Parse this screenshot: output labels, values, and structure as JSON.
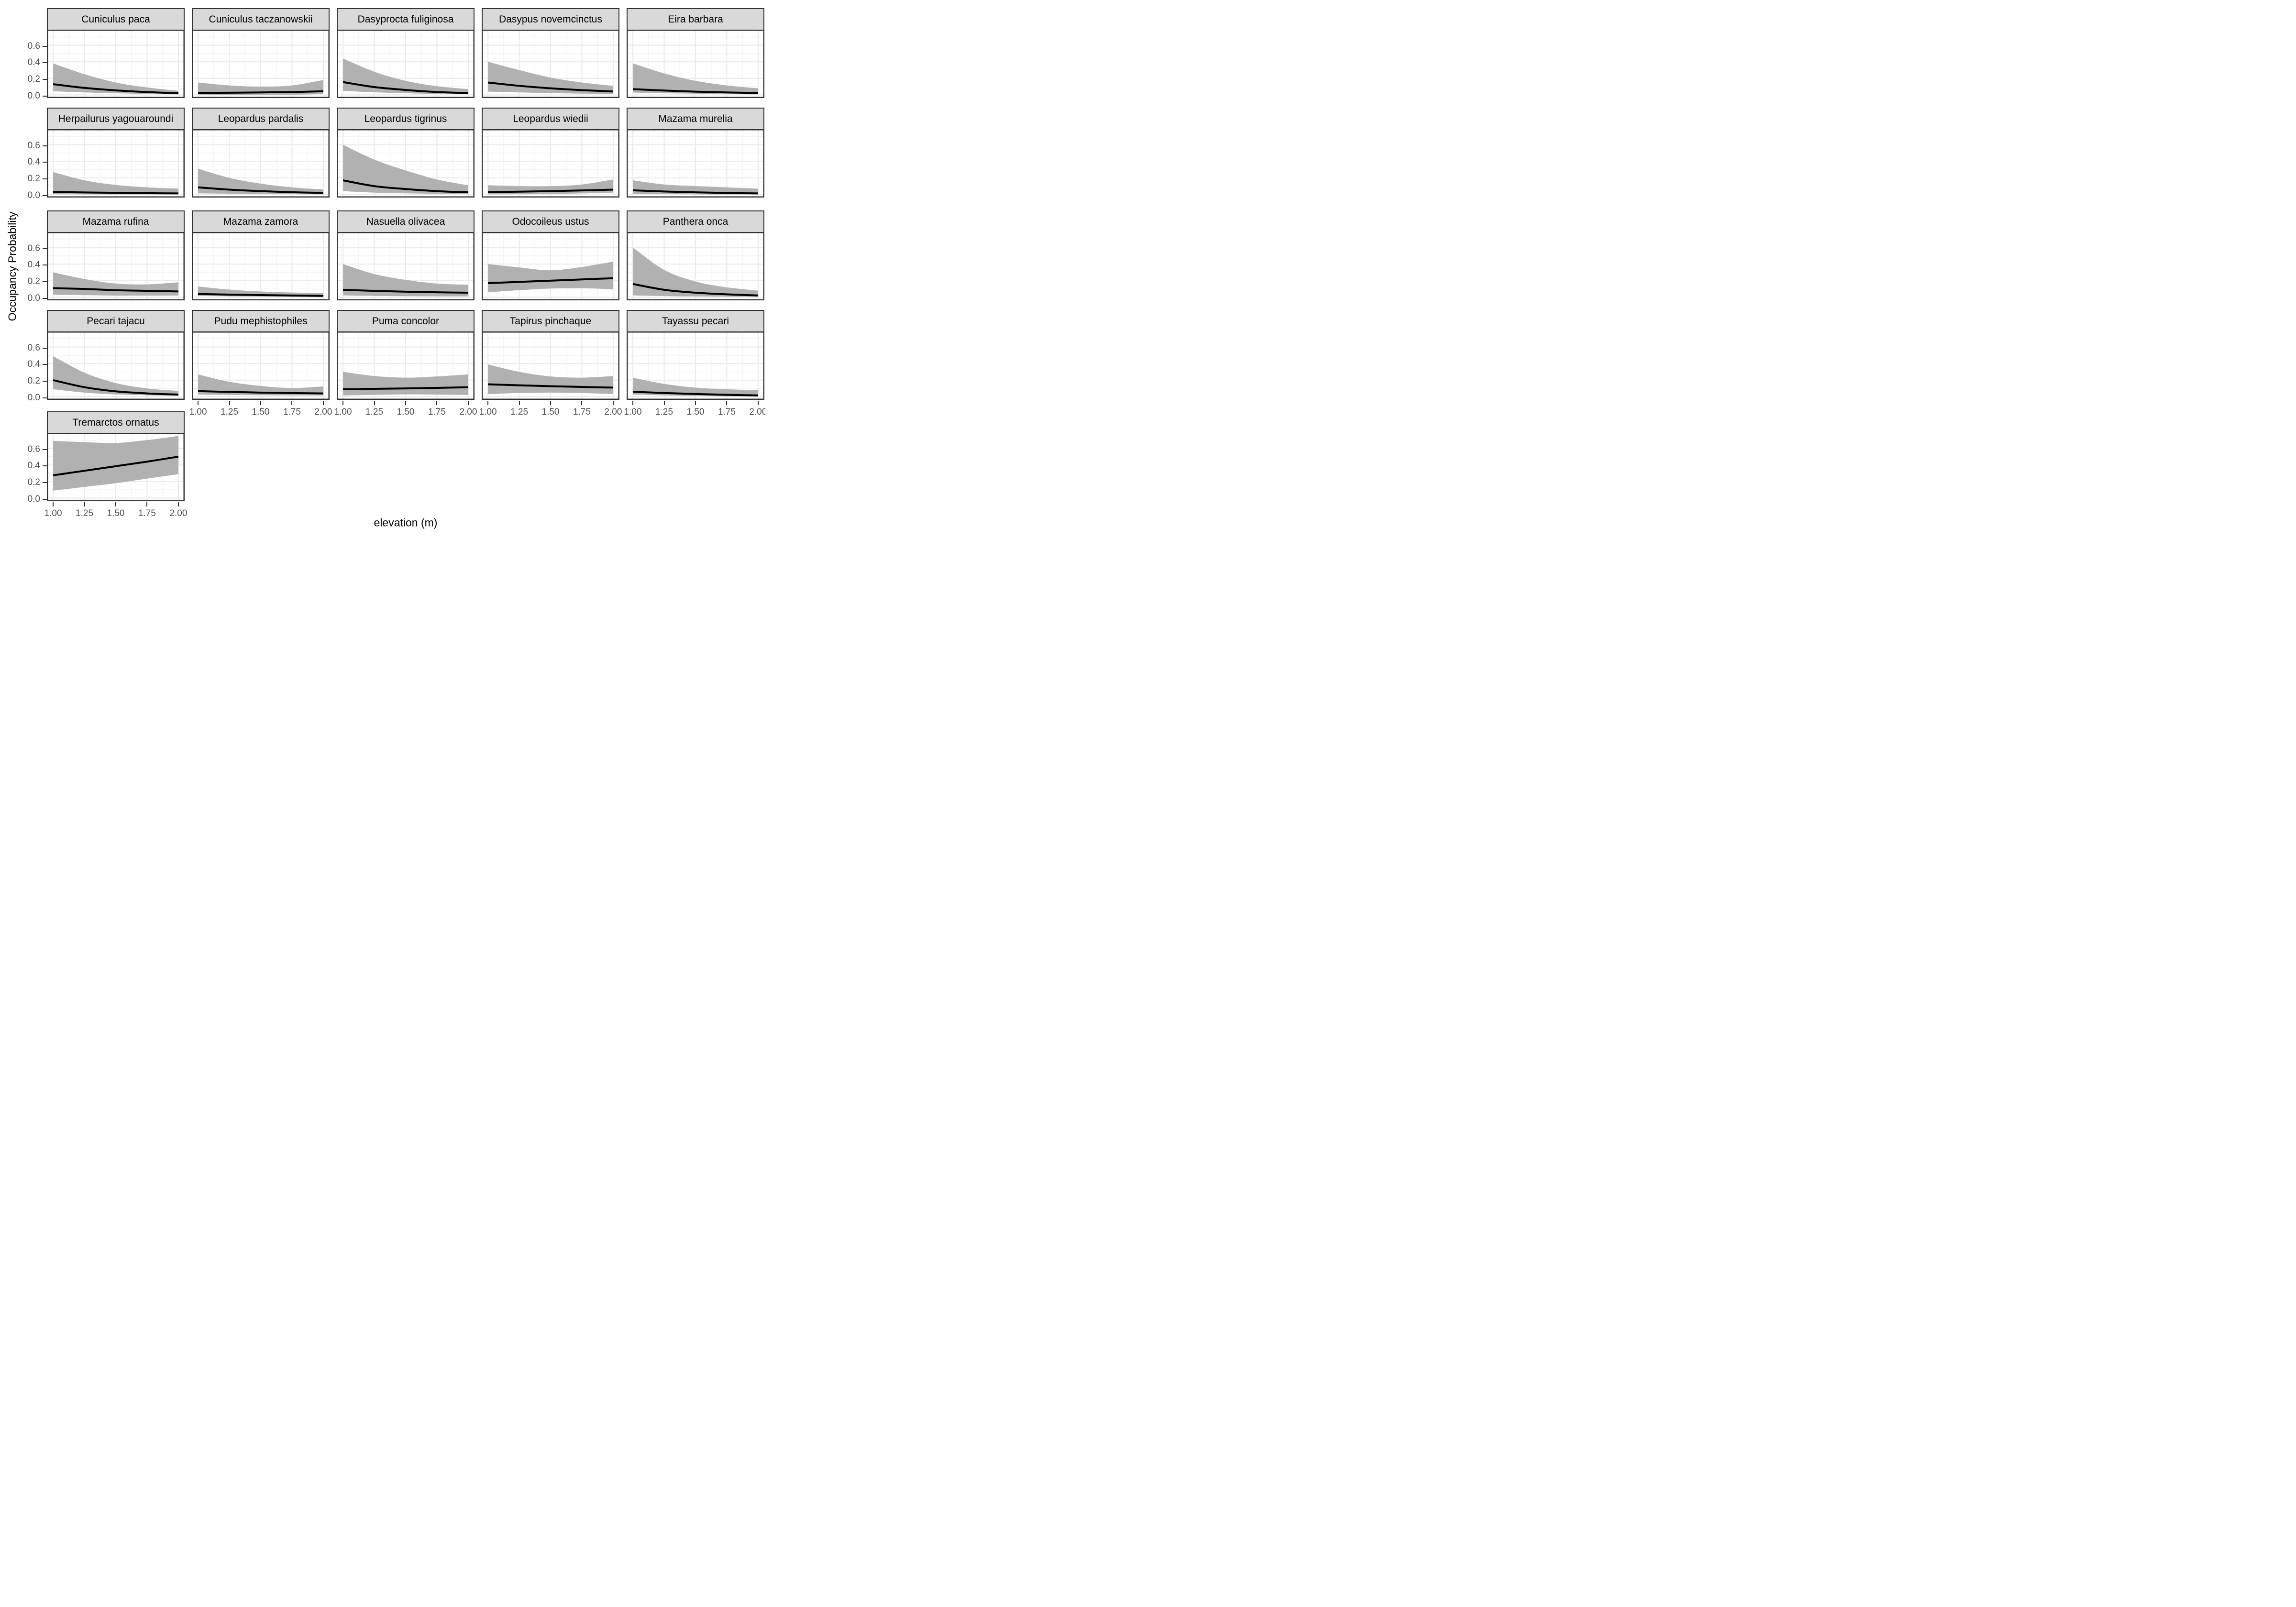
{
  "chart_data": {
    "type": "line",
    "title": "",
    "xlabel": "elevation (m)",
    "ylabel": "Occupancy Probability",
    "x": [
      1.0,
      1.25,
      1.5,
      1.75,
      2.0
    ],
    "xlim": [
      0.95,
      2.05
    ],
    "ylim": [
      -0.0375,
      0.7875
    ],
    "x_ticks": [
      "1.00",
      "1.25",
      "1.50",
      "1.75",
      "2.00"
    ],
    "x_tick_values": [
      1.0,
      1.25,
      1.5,
      1.75,
      2.0
    ],
    "y_ticks": [
      "0.0",
      "0.2",
      "0.4",
      "0.6"
    ],
    "y_tick_values": [
      0.0,
      0.2,
      0.4,
      0.6
    ],
    "x_minor": [
      1.125,
      1.375,
      1.625,
      1.875
    ],
    "y_minor": [
      0.1,
      0.3,
      0.5,
      0.7
    ],
    "grid": true,
    "legend": "none",
    "colors": {
      "ribbon": "#b1b1b1",
      "mean_line": "#000000",
      "panel_border": "#333333",
      "strip_fill": "#d9d9d9",
      "grid_major": "#ebebeb",
      "grid_minor": "#f3f3f3",
      "axis_text": "#4d4d4d"
    },
    "facets": [
      {
        "label": "Cuniculus paca",
        "mean": [
          0.13,
          0.085,
          0.055,
          0.035,
          0.02
        ],
        "lower": [
          0.045,
          0.03,
          0.02,
          0.012,
          0.006
        ],
        "upper": [
          0.38,
          0.25,
          0.15,
          0.09,
          0.05
        ]
      },
      {
        "label": "Cuniculus taczanowskii",
        "mean": [
          0.025,
          0.027,
          0.03,
          0.035,
          0.045
        ],
        "lower": [
          0.004,
          0.001,
          0.0,
          0.002,
          0.01
        ],
        "upper": [
          0.15,
          0.115,
          0.1,
          0.115,
          0.18
        ]
      },
      {
        "label": "Dasyprocta fuliginosa",
        "mean": [
          0.155,
          0.095,
          0.06,
          0.035,
          0.022
        ],
        "lower": [
          0.05,
          0.032,
          0.02,
          0.012,
          0.007
        ],
        "upper": [
          0.44,
          0.28,
          0.17,
          0.105,
          0.07
        ]
      },
      {
        "label": "Dasypus novemcinctus",
        "mean": [
          0.15,
          0.11,
          0.08,
          0.058,
          0.042
        ],
        "lower": [
          0.04,
          0.03,
          0.022,
          0.016,
          0.012
        ],
        "upper": [
          0.4,
          0.3,
          0.21,
          0.15,
          0.11
        ]
      },
      {
        "label": "Eira barbara",
        "mean": [
          0.07,
          0.053,
          0.04,
          0.03,
          0.023
        ],
        "lower": [
          0.028,
          0.02,
          0.015,
          0.01,
          0.007
        ],
        "upper": [
          0.38,
          0.26,
          0.17,
          0.115,
          0.08
        ]
      },
      {
        "label": "Herpailurus yagouaroundi",
        "mean": [
          0.03,
          0.024,
          0.019,
          0.015,
          0.012
        ],
        "lower": [
          0.002,
          0.001,
          0.0,
          0.0,
          0.0
        ],
        "upper": [
          0.27,
          0.17,
          0.115,
          0.085,
          0.07
        ]
      },
      {
        "label": "Leopardus pardalis",
        "mean": [
          0.085,
          0.058,
          0.04,
          0.027,
          0.018
        ],
        "lower": [
          0.012,
          0.008,
          0.005,
          0.002,
          0.0
        ],
        "upper": [
          0.31,
          0.2,
          0.13,
          0.085,
          0.06
        ]
      },
      {
        "label": "Leopardus tigrinus",
        "mean": [
          0.17,
          0.1,
          0.065,
          0.04,
          0.025
        ],
        "lower": [
          0.04,
          0.022,
          0.013,
          0.008,
          0.005
        ],
        "upper": [
          0.6,
          0.42,
          0.29,
          0.18,
          0.11
        ]
      },
      {
        "label": "Leopardus wiedii",
        "mean": [
          0.028,
          0.033,
          0.04,
          0.048,
          0.058
        ],
        "lower": [
          0.0,
          0.002,
          0.005,
          0.012,
          0.022
        ],
        "upper": [
          0.11,
          0.1,
          0.1,
          0.12,
          0.18
        ]
      },
      {
        "label": "Mazama murelia",
        "mean": [
          0.05,
          0.035,
          0.025,
          0.017,
          0.012
        ],
        "lower": [
          0.006,
          0.003,
          0.001,
          0.0,
          0.0
        ],
        "upper": [
          0.17,
          0.12,
          0.1,
          0.085,
          0.07
        ]
      },
      {
        "label": "Mazama rufina",
        "mean": [
          0.11,
          0.1,
          0.085,
          0.078,
          0.07
        ],
        "lower": [
          0.03,
          0.025,
          0.02,
          0.02,
          0.02
        ],
        "upper": [
          0.3,
          0.22,
          0.165,
          0.155,
          0.18
        ]
      },
      {
        "label": "Mazama zamora",
        "mean": [
          0.04,
          0.032,
          0.026,
          0.021,
          0.016
        ],
        "lower": [
          0.015,
          0.011,
          0.008,
          0.006,
          0.004
        ],
        "upper": [
          0.13,
          0.092,
          0.07,
          0.057,
          0.05
        ]
      },
      {
        "label": "Nasuella olivacea",
        "mean": [
          0.09,
          0.077,
          0.067,
          0.06,
          0.055
        ],
        "lower": [
          0.022,
          0.016,
          0.012,
          0.011,
          0.01
        ],
        "upper": [
          0.4,
          0.28,
          0.21,
          0.165,
          0.15
        ]
      },
      {
        "label": "Odocoileus ustus",
        "mean": [
          0.17,
          0.185,
          0.2,
          0.215,
          0.23
        ],
        "lower": [
          0.06,
          0.085,
          0.105,
          0.11,
          0.095
        ],
        "upper": [
          0.4,
          0.36,
          0.325,
          0.365,
          0.43
        ]
      },
      {
        "label": "Panthera onca",
        "mean": [
          0.16,
          0.09,
          0.055,
          0.035,
          0.022
        ],
        "lower": [
          0.022,
          0.014,
          0.01,
          0.007,
          0.005
        ],
        "upper": [
          0.6,
          0.33,
          0.19,
          0.12,
          0.08
        ]
      },
      {
        "label": "Pecari tajacu",
        "mean": [
          0.2,
          0.115,
          0.065,
          0.04,
          0.025
        ],
        "lower": [
          0.09,
          0.05,
          0.028,
          0.017,
          0.011
        ],
        "upper": [
          0.49,
          0.29,
          0.165,
          0.1,
          0.07
        ]
      },
      {
        "label": "Pudu mephistophiles",
        "mean": [
          0.068,
          0.058,
          0.05,
          0.044,
          0.04
        ],
        "lower": [
          0.026,
          0.021,
          0.018,
          0.016,
          0.015
        ],
        "upper": [
          0.27,
          0.18,
          0.13,
          0.105,
          0.125
        ]
      },
      {
        "label": "Puma concolor",
        "mean": [
          0.09,
          0.095,
          0.1,
          0.107,
          0.115
        ],
        "lower": [
          0.015,
          0.022,
          0.028,
          0.026,
          0.02
        ],
        "upper": [
          0.3,
          0.25,
          0.23,
          0.245,
          0.27
        ]
      },
      {
        "label": "Tapirus pinchaque",
        "mean": [
          0.15,
          0.138,
          0.127,
          0.118,
          0.11
        ],
        "lower": [
          0.032,
          0.045,
          0.05,
          0.045,
          0.032
        ],
        "upper": [
          0.39,
          0.3,
          0.245,
          0.23,
          0.25
        ]
      },
      {
        "label": "Tayassu pecari",
        "mean": [
          0.06,
          0.045,
          0.033,
          0.023,
          0.016
        ],
        "lower": [
          0.026,
          0.016,
          0.01,
          0.005,
          0.001
        ],
        "upper": [
          0.23,
          0.155,
          0.11,
          0.09,
          0.08
        ]
      },
      {
        "label": "Tremarctos ornatus",
        "mean": [
          0.275,
          0.33,
          0.385,
          0.44,
          0.5
        ],
        "lower": [
          0.09,
          0.135,
          0.18,
          0.235,
          0.29
        ],
        "upper": [
          0.69,
          0.675,
          0.665,
          0.7,
          0.75
        ]
      }
    ]
  }
}
